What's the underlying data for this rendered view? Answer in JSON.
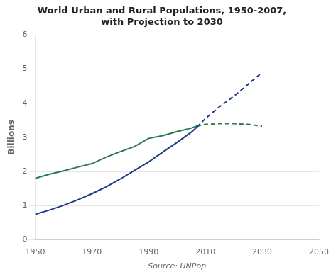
{
  "chart_data": {
    "type": "line",
    "title": "World Urban and Rural Populations, 1950-2007,\nwith Projection to 2030",
    "y_label": "Billions",
    "x_label": "Source: UNPop",
    "xlim": [
      1950,
      2050
    ],
    "ylim": [
      0,
      6
    ],
    "xticks": [
      1950,
      1970,
      1990,
      2010,
      2030,
      2050
    ],
    "yticks": [
      0,
      1,
      2,
      3,
      4,
      5,
      6
    ],
    "grid": "y",
    "series": [
      {
        "color": "#1e3a8a",
        "line_style": "solid",
        "x": [
          1950,
          1955,
          1960,
          1965,
          1970,
          1975,
          1980,
          1985,
          1990,
          1995,
          2000,
          2005,
          2007
        ],
        "values": [
          0.75,
          0.87,
          1.01,
          1.17,
          1.35,
          1.55,
          1.78,
          2.03,
          2.28,
          2.57,
          2.85,
          3.15,
          3.3
        ]
      },
      {
        "color": "#1e3a8a",
        "line_style": "dashed",
        "x": [
          2007,
          2010,
          2015,
          2020,
          2025,
          2030
        ],
        "values": [
          3.3,
          3.55,
          3.9,
          4.2,
          4.55,
          4.9
        ]
      },
      {
        "color": "#2d7a4f",
        "line_style": "solid",
        "x": [
          1950,
          1955,
          1960,
          1965,
          1970,
          1975,
          1980,
          1985,
          1990,
          1995,
          2000,
          2005,
          2007
        ],
        "values": [
          1.8,
          1.92,
          2.02,
          2.13,
          2.23,
          2.42,
          2.58,
          2.73,
          2.97,
          3.05,
          3.17,
          3.27,
          3.33
        ]
      },
      {
        "color": "#2d7a4f",
        "line_style": "dashed",
        "x": [
          2007,
          2010,
          2015,
          2020,
          2025,
          2030
        ],
        "values": [
          3.33,
          3.38,
          3.4,
          3.4,
          3.38,
          3.33
        ]
      }
    ]
  }
}
